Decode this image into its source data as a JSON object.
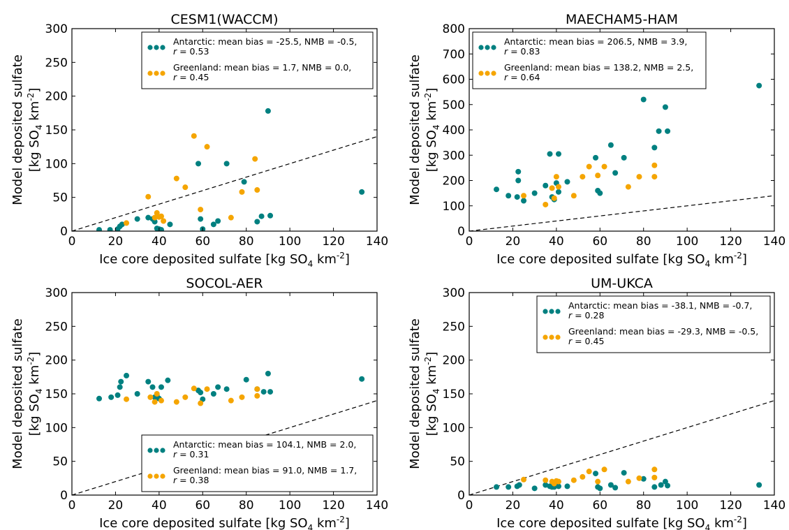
{
  "chart_data": [
    {
      "type": "scatter",
      "title": "CESM1(WACCM)",
      "xlabel": "Ice core deposited sulfate [kg SO4 km-2]",
      "ylabel": "Model deposited sulfate [kg SO4 km-2]",
      "xlim": [
        0,
        140
      ],
      "ylim": [
        0,
        300
      ],
      "xticks": [
        0,
        20,
        40,
        60,
        80,
        100,
        120,
        140
      ],
      "yticks": [
        0,
        50,
        100,
        150,
        200,
        250,
        300
      ],
      "legend_position": "top-right",
      "reference_line": "1:1 dashed",
      "series": [
        {
          "name": "Antarctic",
          "color": "#008080",
          "legend_line1": "Antarctic: mean bias = -25.5, NMB = -0.5,",
          "legend_line2": "r = 0.53",
          "points": [
            [
              12.5,
              2
            ],
            [
              17.5,
              2
            ],
            [
              21,
              3
            ],
            [
              22,
              7
            ],
            [
              23,
              10
            ],
            [
              30,
              18
            ],
            [
              35,
              20
            ],
            [
              37,
              18
            ],
            [
              38,
              14
            ],
            [
              39,
              4
            ],
            [
              40,
              3
            ],
            [
              41,
              2
            ],
            [
              45,
              10
            ],
            [
              58,
              100
            ],
            [
              59,
              18
            ],
            [
              60,
              3
            ],
            [
              65,
              10
            ],
            [
              67,
              15
            ],
            [
              71,
              100
            ],
            [
              79,
              73
            ],
            [
              85,
              14
            ],
            [
              87,
              22
            ],
            [
              90,
              178
            ],
            [
              91,
              23
            ],
            [
              133,
              58
            ]
          ]
        },
        {
          "name": "Greenland",
          "color": "#f5a500",
          "legend_line1": "Greenland: mean bias = 1.7, NMB = 0.0,",
          "legend_line2": "r = 0.45",
          "points": [
            [
              25,
              12
            ],
            [
              35,
              51
            ],
            [
              38,
              20
            ],
            [
              39,
              27
            ],
            [
              40,
              21
            ],
            [
              41,
              22
            ],
            [
              42,
              15
            ],
            [
              48,
              78
            ],
            [
              52,
              65
            ],
            [
              56,
              141
            ],
            [
              59,
              32
            ],
            [
              62,
              125
            ],
            [
              73,
              20
            ],
            [
              78,
              58
            ],
            [
              84,
              107
            ],
            [
              85,
              61
            ]
          ]
        }
      ]
    },
    {
      "type": "scatter",
      "title": "MAECHAM5-HAM",
      "xlabel": "Ice core deposited sulfate [kg SO4 km-2]",
      "ylabel": "Model deposited sulfate [kg SO4 km-2]",
      "xlim": [
        0,
        140
      ],
      "ylim": [
        0,
        800
      ],
      "xticks": [
        0,
        20,
        40,
        60,
        80,
        100,
        120,
        140
      ],
      "yticks": [
        0,
        100,
        200,
        300,
        400,
        500,
        600,
        700,
        800
      ],
      "legend_position": "top-left",
      "reference_line": "1:1 dashed",
      "series": [
        {
          "name": "Antarctic",
          "color": "#008080",
          "legend_line1": "Antarctic: mean bias = 206.5, NMB = 3.9,",
          "legend_line2": "r = 0.83",
          "points": [
            [
              12.5,
              165
            ],
            [
              18,
              140
            ],
            [
              22,
              135
            ],
            [
              22.5,
              235
            ],
            [
              22.5,
              200
            ],
            [
              25,
              120
            ],
            [
              30,
              150
            ],
            [
              35,
              180
            ],
            [
              37,
              305
            ],
            [
              38,
              135
            ],
            [
              39,
              125
            ],
            [
              40,
              190
            ],
            [
              41,
              305
            ],
            [
              41,
              155
            ],
            [
              45,
              195
            ],
            [
              58,
              290
            ],
            [
              59,
              160
            ],
            [
              60,
              150
            ],
            [
              65,
              340
            ],
            [
              67,
              230
            ],
            [
              71,
              290
            ],
            [
              80,
              520
            ],
            [
              85,
              330
            ],
            [
              87,
              395
            ],
            [
              90,
              490
            ],
            [
              91,
              395
            ],
            [
              133,
              575
            ]
          ]
        },
        {
          "name": "Greenland",
          "color": "#f5a500",
          "legend_line1": "Greenland: mean bias = 138.2, NMB = 2.5,",
          "legend_line2": "r = 0.64",
          "points": [
            [
              25,
              140
            ],
            [
              35,
              105
            ],
            [
              38,
              170
            ],
            [
              39,
              130
            ],
            [
              40,
              215
            ],
            [
              41,
              175
            ],
            [
              48,
              140
            ],
            [
              52,
              215
            ],
            [
              55,
              255
            ],
            [
              59,
              220
            ],
            [
              62,
              255
            ],
            [
              73,
              175
            ],
            [
              78,
              215
            ],
            [
              85,
              260
            ],
            [
              85,
              215
            ]
          ]
        }
      ]
    },
    {
      "type": "scatter",
      "title": "SOCOL-AER",
      "xlabel": "Ice core deposited sulfate [kg SO4 km-2]",
      "ylabel": "Model deposited sulfate [kg SO4 km-2]",
      "xlim": [
        0,
        140
      ],
      "ylim": [
        0,
        300
      ],
      "xticks": [
        0,
        20,
        40,
        60,
        80,
        100,
        120,
        140
      ],
      "yticks": [
        0,
        50,
        100,
        150,
        200,
        250,
        300
      ],
      "legend_position": "bottom-right",
      "reference_line": "1:1 dashed",
      "series": [
        {
          "name": "Antarctic",
          "color": "#008080",
          "legend_line1": "Antarctic: mean bias = 104.1, NMB = 2.0,",
          "legend_line2": "r = 0.31",
          "points": [
            [
              12.5,
              143
            ],
            [
              18,
              145
            ],
            [
              21,
              148
            ],
            [
              22,
              160
            ],
            [
              22.5,
              168
            ],
            [
              25,
              177
            ],
            [
              30,
              150
            ],
            [
              35,
              168
            ],
            [
              37,
              160
            ],
            [
              38,
              145
            ],
            [
              39,
              148
            ],
            [
              40,
              143
            ],
            [
              41,
              160
            ],
            [
              44,
              170
            ],
            [
              58,
              155
            ],
            [
              59,
              152
            ],
            [
              60,
              142
            ],
            [
              65,
              150
            ],
            [
              67,
              160
            ],
            [
              71,
              157
            ],
            [
              80,
              171
            ],
            [
              85,
              157
            ],
            [
              88,
              153
            ],
            [
              90,
              180
            ],
            [
              91,
              153
            ],
            [
              133,
              172
            ]
          ]
        },
        {
          "name": "Greenland",
          "color": "#f5a500",
          "legend_line1": "Greenland: mean bias = 91.0, NMB = 1.7,",
          "legend_line2": "r = 0.38",
          "points": [
            [
              25,
              142
            ],
            [
              36,
              145
            ],
            [
              38,
              138
            ],
            [
              39,
              150
            ],
            [
              41,
              140
            ],
            [
              48,
              138
            ],
            [
              52,
              145
            ],
            [
              56,
              158
            ],
            [
              59,
              136
            ],
            [
              62,
              157
            ],
            [
              73,
              140
            ],
            [
              78,
              145
            ],
            [
              85,
              157
            ],
            [
              85,
              147
            ]
          ]
        }
      ]
    },
    {
      "type": "scatter",
      "title": "UM-UKCA",
      "xlabel": "Ice core deposited sulfate [kg SO4 km-2]",
      "ylabel": "Model deposited sulfate [kg SO4 km-2]",
      "xlim": [
        0,
        140
      ],
      "ylim": [
        0,
        300
      ],
      "xticks": [
        0,
        20,
        40,
        60,
        80,
        100,
        120,
        140
      ],
      "yticks": [
        0,
        50,
        100,
        150,
        200,
        250,
        300
      ],
      "legend_position": "top-right",
      "reference_line": "1:1 dashed",
      "series": [
        {
          "name": "Antarctic",
          "color": "#008080",
          "legend_line1": "Antarctic: mean bias = -38.1, NMB = -0.7,",
          "legend_line2": "r = 0.28",
          "points": [
            [
              12.5,
              12
            ],
            [
              18,
              12
            ],
            [
              22,
              13
            ],
            [
              23,
              15
            ],
            [
              30,
              10
            ],
            [
              35,
              15
            ],
            [
              37,
              13
            ],
            [
              38,
              12
            ],
            [
              39,
              12
            ],
            [
              40,
              15
            ],
            [
              41,
              13
            ],
            [
              45,
              13
            ],
            [
              58,
              32
            ],
            [
              59,
              12
            ],
            [
              60,
              10
            ],
            [
              65,
              15
            ],
            [
              67,
              11
            ],
            [
              71,
              33
            ],
            [
              80,
              24
            ],
            [
              85,
              12
            ],
            [
              88,
              15
            ],
            [
              90,
              20
            ],
            [
              91,
              14
            ],
            [
              133,
              15
            ]
          ]
        },
        {
          "name": "Greenland",
          "color": "#f5a500",
          "legend_line1": "Greenland: mean bias = -29.3, NMB = -0.5,",
          "legend_line2": "r = 0.45",
          "points": [
            [
              25,
              23
            ],
            [
              35,
              22
            ],
            [
              38,
              20
            ],
            [
              39,
              17
            ],
            [
              40,
              21
            ],
            [
              41,
              20
            ],
            [
              48,
              22
            ],
            [
              52,
              27
            ],
            [
              55,
              35
            ],
            [
              59,
              20
            ],
            [
              62,
              38
            ],
            [
              73,
              20
            ],
            [
              78,
              25
            ],
            [
              85,
              38
            ],
            [
              85,
              26
            ]
          ]
        }
      ]
    }
  ]
}
